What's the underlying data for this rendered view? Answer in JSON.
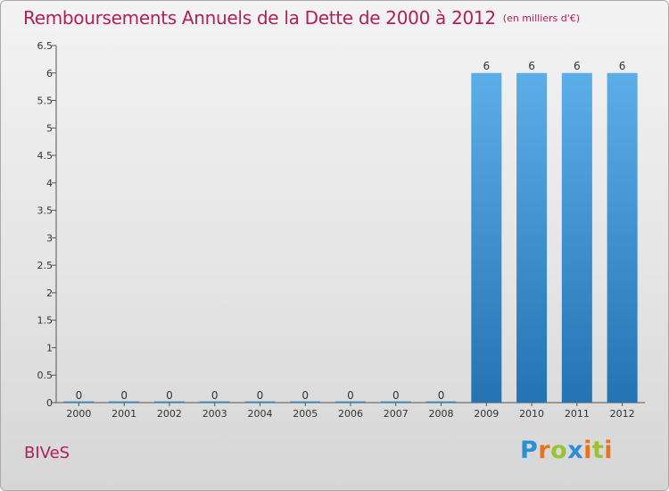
{
  "header": {
    "title": "Remboursements Annuels de la Dette de 2000 à 2012",
    "unit": "(en milliers d'€)"
  },
  "commune": "BIVeS",
  "logo": {
    "text": "Proxiti",
    "letters": [
      {
        "ch": "P",
        "color": "#2a8fd4"
      },
      {
        "ch": "r",
        "color": "#e9731d"
      },
      {
        "ch": "o",
        "color": "#9ac332"
      },
      {
        "ch": "x",
        "color": "#2a8fd4"
      },
      {
        "ch": "i",
        "color": "#e9731d"
      },
      {
        "ch": "t",
        "color": "#9ac332"
      },
      {
        "ch": "i",
        "color": "#e9731d"
      }
    ]
  },
  "colors": {
    "bar_light": "#5caee8",
    "bar_dark": "#2473b3",
    "title": "#b0205a",
    "axis": "#555555"
  },
  "chart_data": {
    "type": "bar",
    "title": "Remboursements Annuels de la Dette de 2000 à 2012",
    "ylabel": "(en milliers d'€)",
    "xlabel": "",
    "categories": [
      "2000",
      "2001",
      "2002",
      "2003",
      "2004",
      "2005",
      "2006",
      "2007",
      "2008",
      "2009",
      "2010",
      "2011",
      "2012"
    ],
    "values": [
      0,
      0,
      0,
      0,
      0,
      0,
      0,
      0,
      0,
      6,
      6,
      6,
      6
    ],
    "value_labels": [
      "0",
      "0",
      "0",
      "0",
      "0",
      "0",
      "0",
      "0",
      "0",
      "6",
      "6",
      "6",
      "6"
    ],
    "ylim": [
      0,
      6.5
    ],
    "yticks": [
      0,
      0.5,
      1,
      1.5,
      2,
      2.5,
      3,
      3.5,
      4,
      4.5,
      5,
      5.5,
      6,
      6.5
    ],
    "ytick_labels": [
      "0",
      "0.5",
      "1",
      "1.5",
      "2",
      "2.5",
      "3",
      "3.5",
      "4",
      "4.5",
      "5",
      "5.5",
      "6",
      "6.5"
    ],
    "grid": false,
    "legend": "none"
  }
}
